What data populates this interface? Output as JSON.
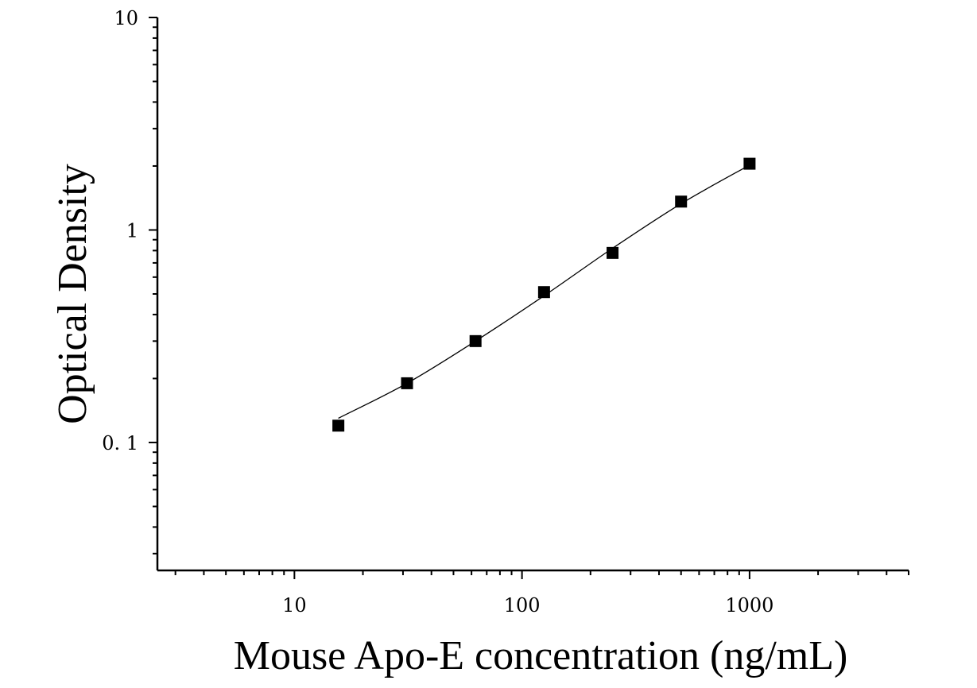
{
  "chart_data": {
    "type": "scatter",
    "title": "",
    "xlabel": "Mouse Apo-E concentration (ng/mL)",
    "ylabel": "Optical Density",
    "x_scale": "log",
    "y_scale": "log",
    "xlim": [
      2.5,
      5000
    ],
    "ylim": [
      0.025,
      10
    ],
    "x_ticks": [
      10,
      100,
      1000
    ],
    "x_tick_labels": [
      "10",
      "100",
      "1000"
    ],
    "y_ticks": [
      0.1,
      1,
      10
    ],
    "y_tick_labels": [
      "0. 1",
      "1",
      "10"
    ],
    "grid": false,
    "legend": "none",
    "series": [
      {
        "marker": "square",
        "color": "#000000",
        "points": [
          {
            "x": 15.6,
            "y": 0.12
          },
          {
            "x": 31.25,
            "y": 0.19
          },
          {
            "x": 62.5,
            "y": 0.3
          },
          {
            "x": 125,
            "y": 0.51
          },
          {
            "x": 250,
            "y": 0.78
          },
          {
            "x": 500,
            "y": 1.36
          },
          {
            "x": 1000,
            "y": 2.05
          }
        ],
        "fit_curve": {
          "color": "#000000",
          "points": [
            {
              "x": 15.6,
              "y": 0.13
            },
            {
              "x": 31.25,
              "y": 0.19
            },
            {
              "x": 62.5,
              "y": 0.3
            },
            {
              "x": 125,
              "y": 0.49
            },
            {
              "x": 250,
              "y": 0.82
            },
            {
              "x": 500,
              "y": 1.33
            },
            {
              "x": 1000,
              "y": 2.02
            }
          ]
        }
      }
    ]
  }
}
